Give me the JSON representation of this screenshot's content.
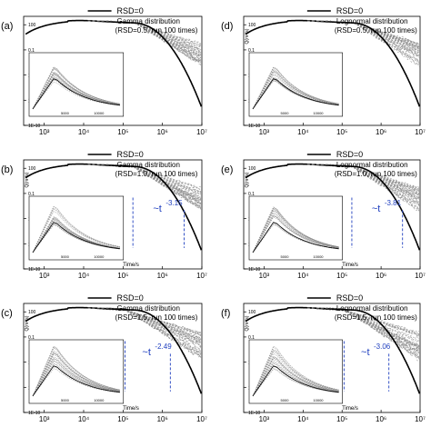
{
  "chart_data": [
    {
      "panel_label": "(a)",
      "type": "line",
      "xlabel": "",
      "ylabel": "",
      "xscale": "log",
      "yscale": "log",
      "xlim": [
        300,
        10000000
      ],
      "xticks": [
        "10³",
        "10⁴",
        "10⁵",
        "10⁶",
        "10⁷"
      ],
      "yticks": [
        "100",
        "0.1",
        "1E-4",
        "1E-7",
        "1E-10"
      ],
      "legend": [
        "RSD=0",
        "Gamma distribution",
        "(RSD=0.5, run 100 times)"
      ],
      "legend_position": "top-right",
      "tail_exponent": null,
      "inset": {
        "xticks": [
          "5000",
          "10000"
        ]
      },
      "series": [
        {
          "name": "RSD=0",
          "style": "solid-black"
        },
        {
          "name": "Gamma distribution",
          "style": "dashed-gray",
          "runs": 100
        }
      ]
    },
    {
      "panel_label": "(b)",
      "type": "line",
      "xlabel": "Time/s",
      "ylabel": "Q(m³/s)",
      "xscale": "log",
      "yscale": "log",
      "xlim": [
        300,
        10000000
      ],
      "xticks": [
        "10³",
        "10⁴",
        "10⁵",
        "10⁶",
        "10⁷"
      ],
      "yticks": [
        "100",
        "0.1",
        "1E-4",
        "1E-7",
        "1E-10"
      ],
      "legend": [
        "RSD=0",
        "Gamma distribution",
        "(RSD=1.0, run 100 times)"
      ],
      "legend_position": "top-right",
      "tail_exponent": {
        "label": "~t",
        "power": "-3.15"
      },
      "inset": {
        "xticks": [
          "5000",
          "10000"
        ]
      },
      "series": [
        {
          "name": "RSD=0",
          "style": "solid-black"
        },
        {
          "name": "Gamma distribution",
          "style": "dashed-gray",
          "runs": 100
        }
      ]
    },
    {
      "panel_label": "(c)",
      "type": "line",
      "xlabel": "Time/s",
      "ylabel": "Q(m³/s)",
      "xscale": "log",
      "yscale": "log",
      "xlim": [
        300,
        10000000
      ],
      "xticks": [
        "10³",
        "10⁴",
        "10⁵",
        "10⁶",
        "10⁷"
      ],
      "yticks": [
        "100",
        "0.1",
        "1E-4",
        "1E-7",
        "1E-10"
      ],
      "legend": [
        "RSD=0",
        "Gamma distribution",
        "(RSD=1.5, run 100 times)"
      ],
      "legend_position": "top-right",
      "tail_exponent": {
        "label": "~t",
        "power": "-2.49"
      },
      "inset": {
        "xticks": [
          "5000",
          "10000"
        ]
      },
      "series": [
        {
          "name": "RSD=0",
          "style": "solid-black"
        },
        {
          "name": "Gamma distribution",
          "style": "dashed-gray",
          "runs": 100
        }
      ]
    },
    {
      "panel_label": "(d)",
      "type": "line",
      "xlabel": "",
      "ylabel": "Q(m³/s)",
      "xscale": "log",
      "yscale": "log",
      "xlim": [
        300,
        10000000
      ],
      "xticks": [
        "10³",
        "10⁴",
        "10⁵",
        "10⁶",
        "10⁷"
      ],
      "yticks": [
        "100",
        "0.1",
        "1E-4",
        "1E-7",
        "1E-10"
      ],
      "legend": [
        "RSD=0",
        "Lognormal distribution",
        "(RSD=0.5, run 100 times)"
      ],
      "legend_position": "top-right",
      "tail_exponent": null,
      "inset": {
        "xticks": [
          "5000",
          "10000"
        ]
      },
      "series": [
        {
          "name": "RSD=0",
          "style": "solid-black"
        },
        {
          "name": "Lognormal distribution",
          "style": "dashed-gray",
          "runs": 100
        }
      ]
    },
    {
      "panel_label": "(e)",
      "type": "line",
      "xlabel": "Time/s",
      "ylabel": "Q(m³/s)",
      "xscale": "log",
      "yscale": "log",
      "xlim": [
        300,
        10000000
      ],
      "xticks": [
        "10³",
        "10⁴",
        "10⁵",
        "10⁶",
        "10⁷"
      ],
      "yticks": [
        "100",
        "0.1",
        "1E-4",
        "1E-7",
        "1E-10"
      ],
      "legend": [
        "RSD=0",
        "Lognormal distribution",
        "(RSD=1.0, run 100 times)"
      ],
      "legend_position": "top-right",
      "tail_exponent": {
        "label": "~t",
        "power": "-3.81"
      },
      "inset": {
        "xticks": [
          "5000",
          "10000"
        ]
      },
      "series": [
        {
          "name": "RSD=0",
          "style": "solid-black"
        },
        {
          "name": "Lognormal distribution",
          "style": "dashed-gray",
          "runs": 100
        }
      ]
    },
    {
      "panel_label": "(f)",
      "type": "line",
      "xlabel": "Time/s",
      "ylabel": "Q(m³/s)",
      "xscale": "log",
      "yscale": "log",
      "xlim": [
        300,
        10000000
      ],
      "xticks": [
        "10³",
        "10⁴",
        "10⁵",
        "10⁶",
        "10⁷"
      ],
      "yticks": [
        "100",
        "0.1",
        "1E-4",
        "1E-7",
        "1E-10"
      ],
      "legend": [
        "RSD=0",
        "Lognormal distribution",
        "(RSD=1.5, run 100 times)"
      ],
      "legend_position": "top-right",
      "tail_exponent": {
        "label": "~t",
        "power": "-3.06"
      },
      "inset": {
        "xticks": [
          "5000",
          "10000"
        ]
      },
      "series": [
        {
          "name": "RSD=0",
          "style": "solid-black"
        },
        {
          "name": "Lognormal distribution",
          "style": "dashed-gray",
          "runs": 100
        }
      ]
    }
  ],
  "colors": {
    "baseline": "#000000",
    "ensemble": "#8c8c8c",
    "annotation": "#1f3fbf"
  }
}
